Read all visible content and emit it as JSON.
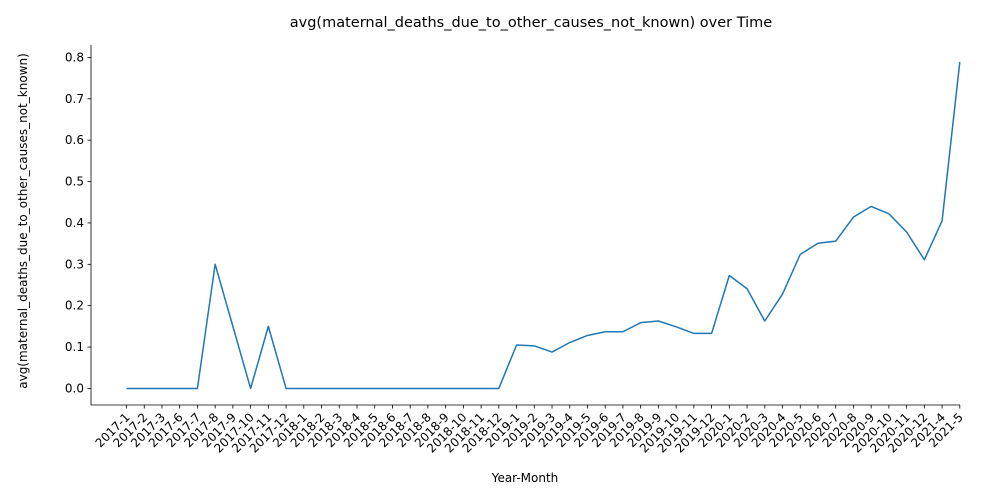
{
  "chart_data": {
    "type": "line",
    "title": "avg(maternal_deaths_due_to_other_causes_not_known) over Time",
    "xlabel": "Year-Month",
    "ylabel": "avg(maternal_deaths_due_to_other_causes_not_known)",
    "ylim": [
      -0.04,
      0.83
    ],
    "yticks": [
      0.0,
      0.1,
      0.2,
      0.3,
      0.4,
      0.5,
      0.6,
      0.7,
      0.8
    ],
    "ytick_labels": [
      "0.0",
      "0.1",
      "0.2",
      "0.3",
      "0.4",
      "0.5",
      "0.6",
      "0.7",
      "0.8"
    ],
    "grid": false,
    "categories": [
      "2017-1",
      "2017-2",
      "2017-3",
      "2017-6",
      "2017-7",
      "2017-8",
      "2017-9",
      "2017-10",
      "2017-11",
      "2017-12",
      "2018-1",
      "2018-2",
      "2018-3",
      "2018-4",
      "2018-5",
      "2018-6",
      "2018-7",
      "2018-8",
      "2018-9",
      "2018-10",
      "2018-11",
      "2018-12",
      "2019-1",
      "2019-2",
      "2019-3",
      "2019-4",
      "2019-5",
      "2019-6",
      "2019-7",
      "2019-8",
      "2019-9",
      "2019-10",
      "2019-11",
      "2019-12",
      "2020-1",
      "2020-2",
      "2020-3",
      "2020-4",
      "2020-5",
      "2020-6",
      "2020-7",
      "2020-8",
      "2020-9",
      "2020-10",
      "2020-11",
      "2020-12",
      "2021-4",
      "2021-5"
    ],
    "series": [
      {
        "color": "#1f77b4",
        "values": [
          0,
          0,
          0,
          0,
          0,
          0.3,
          0.15,
          0,
          0.15,
          0,
          0,
          0,
          0,
          0,
          0,
          0,
          0,
          0,
          0,
          0,
          0,
          0,
          0.105,
          0.103,
          0.088,
          0.111,
          0.128,
          0.137,
          0.137,
          0.159,
          0.163,
          0.149,
          0.133,
          0.133,
          0.273,
          0.241,
          0.163,
          0.228,
          0.324,
          0.351,
          0.356,
          0.414,
          0.44,
          0.422,
          0.378,
          0.311,
          0.405,
          0.789
        ]
      }
    ]
  }
}
